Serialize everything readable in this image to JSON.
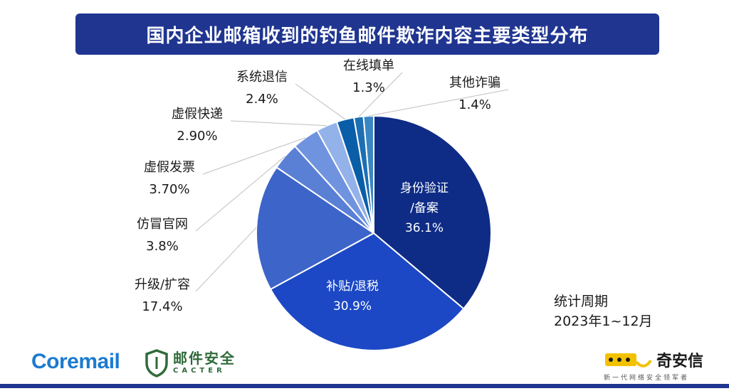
{
  "title": "国内企业邮箱收到的钓鱼邮件欺诈内容主要类型分布",
  "stat_period": {
    "label": "统计周期",
    "value": "2023年1~12月"
  },
  "logos": {
    "coremail": "Coremail",
    "cacter_cn": "邮件安全",
    "cacter_en": "CACTER",
    "qianxin_name": "奇安信",
    "qianxin_slogan": "新一代网络安全领军者"
  },
  "chart_data": {
    "type": "pie",
    "title": "国内企业邮箱收到的钓鱼邮件欺诈内容主要类型分布",
    "slices": [
      {
        "label_lines": [
          "身份验证",
          "/备案"
        ],
        "value": 36.1,
        "value_text": "36.1%",
        "color": "#0e2c86",
        "label_inside": true
      },
      {
        "label_lines": [
          "补贴/退税"
        ],
        "value": 30.9,
        "value_text": "30.9%",
        "color": "#1c48c5",
        "label_inside": true
      },
      {
        "label_lines": [
          "升级/扩容"
        ],
        "value": 17.4,
        "value_text": "17.4%",
        "color": "#3d64c8",
        "label_inside": false
      },
      {
        "label_lines": [
          "仿冒官网"
        ],
        "value": 3.8,
        "value_text": "3.8%",
        "color": "#5a80d6",
        "label_inside": false
      },
      {
        "label_lines": [
          "虚假发票"
        ],
        "value": 3.7,
        "value_text": "3.70%",
        "color": "#6f93df",
        "label_inside": false
      },
      {
        "label_lines": [
          "虚假快递"
        ],
        "value": 2.9,
        "value_text": "2.90%",
        "color": "#94b2ea",
        "label_inside": false
      },
      {
        "label_lines": [
          "系统退信"
        ],
        "value": 2.4,
        "value_text": "2.4%",
        "color": "#0a5ea8",
        "label_inside": false
      },
      {
        "label_lines": [
          "在线填单"
        ],
        "value": 1.3,
        "value_text": "1.3%",
        "color": "#1d6fb3",
        "label_inside": false
      },
      {
        "label_lines": [
          "其他诈骗"
        ],
        "value": 1.4,
        "value_text": "1.4%",
        "color": "#3a86c2",
        "label_inside": false
      }
    ]
  }
}
